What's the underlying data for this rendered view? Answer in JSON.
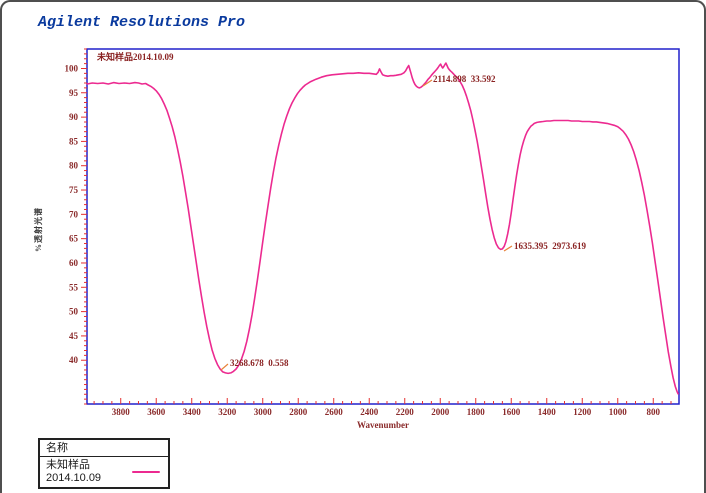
{
  "app": {
    "title": "Agilent Resolutions Pro"
  },
  "chart": {
    "xlabel": "Wavenumber",
    "ylabel": "%透射光谱",
    "annotations": {
      "sample_label": "未知样品2014.10.09",
      "peak_2114": "2114.898  33.592",
      "peak_1635": "1635.395  2973.619",
      "peak_3268": "3268.678  0.558"
    }
  },
  "legend": {
    "header": "名称",
    "entry": "未知样品2014.10.09"
  },
  "colors": {
    "curve": "#ec2a90",
    "frame": "#2121cc",
    "tick": "#e53030",
    "tick_label": "#8a2a2a",
    "leader": "#e8833a",
    "title": "#0a3a9e"
  },
  "chart_data": {
    "type": "line",
    "title": "",
    "xlabel": "Wavenumber",
    "ylabel": "%透射光谱",
    "xlim": [
      3990,
      655
    ],
    "ylim": [
      31,
      104
    ],
    "x_axis_reversed": true,
    "grid": false,
    "legend_position": "bottom-left-outside",
    "x_major_ticks": [
      3800,
      3600,
      3400,
      3200,
      3000,
      2800,
      2600,
      2400,
      2200,
      2000,
      1800,
      1600,
      1400,
      1200,
      1000,
      800
    ],
    "x_minor_step": 50,
    "y_major_ticks": [
      100,
      95,
      90,
      85,
      80,
      75,
      70,
      65,
      60,
      55,
      50,
      45,
      40
    ],
    "y_minor_step": 1,
    "series": [
      {
        "name": "未知样品2014.10.09",
        "color": "#ec2a90",
        "points": [
          [
            3990,
            96.8
          ],
          [
            3960,
            97.0
          ],
          [
            3930,
            96.9
          ],
          [
            3900,
            97.0
          ],
          [
            3870,
            96.8
          ],
          [
            3840,
            97.1
          ],
          [
            3810,
            96.9
          ],
          [
            3780,
            97.0
          ],
          [
            3750,
            96.9
          ],
          [
            3720,
            97.1
          ],
          [
            3700,
            97.0
          ],
          [
            3680,
            96.8
          ],
          [
            3660,
            96.9
          ],
          [
            3645,
            96.6
          ],
          [
            3630,
            96.3
          ],
          [
            3615,
            95.9
          ],
          [
            3600,
            95.4
          ],
          [
            3585,
            94.7
          ],
          [
            3570,
            93.8
          ],
          [
            3555,
            92.7
          ],
          [
            3540,
            91.4
          ],
          [
            3525,
            89.8
          ],
          [
            3510,
            88.0
          ],
          [
            3495,
            85.9
          ],
          [
            3480,
            83.5
          ],
          [
            3465,
            80.8
          ],
          [
            3450,
            77.8
          ],
          [
            3435,
            74.6
          ],
          [
            3420,
            71.2
          ],
          [
            3405,
            67.6
          ],
          [
            3390,
            63.9
          ],
          [
            3375,
            60.2
          ],
          [
            3360,
            56.6
          ],
          [
            3345,
            53.1
          ],
          [
            3330,
            49.8
          ],
          [
            3315,
            46.9
          ],
          [
            3300,
            44.3
          ],
          [
            3285,
            42.1
          ],
          [
            3270,
            40.4
          ],
          [
            3255,
            39.1
          ],
          [
            3240,
            38.2
          ],
          [
            3225,
            37.6
          ],
          [
            3210,
            37.4
          ],
          [
            3195,
            37.3
          ],
          [
            3180,
            37.4
          ],
          [
            3165,
            37.7
          ],
          [
            3150,
            38.2
          ],
          [
            3135,
            39.0
          ],
          [
            3120,
            40.2
          ],
          [
            3105,
            41.8
          ],
          [
            3090,
            43.9
          ],
          [
            3075,
            46.4
          ],
          [
            3060,
            49.4
          ],
          [
            3045,
            52.8
          ],
          [
            3030,
            56.5
          ],
          [
            3015,
            60.4
          ],
          [
            3000,
            64.3
          ],
          [
            2985,
            68.2
          ],
          [
            2970,
            71.9
          ],
          [
            2955,
            75.4
          ],
          [
            2940,
            78.7
          ],
          [
            2925,
            81.6
          ],
          [
            2910,
            84.2
          ],
          [
            2895,
            86.5
          ],
          [
            2880,
            88.5
          ],
          [
            2865,
            90.2
          ],
          [
            2850,
            91.7
          ],
          [
            2835,
            92.9
          ],
          [
            2820,
            93.9
          ],
          [
            2805,
            94.8
          ],
          [
            2790,
            95.5
          ],
          [
            2775,
            96.1
          ],
          [
            2760,
            96.6
          ],
          [
            2730,
            97.3
          ],
          [
            2700,
            97.8
          ],
          [
            2670,
            98.2
          ],
          [
            2640,
            98.5
          ],
          [
            2610,
            98.7
          ],
          [
            2580,
            98.8
          ],
          [
            2550,
            98.9
          ],
          [
            2520,
            99.0
          ],
          [
            2490,
            99.0
          ],
          [
            2460,
            99.1
          ],
          [
            2430,
            99.0
          ],
          [
            2400,
            99.0
          ],
          [
            2380,
            98.9
          ],
          [
            2360,
            98.8
          ],
          [
            2350,
            99.2
          ],
          [
            2342,
            99.9
          ],
          [
            2334,
            99.3
          ],
          [
            2325,
            98.7
          ],
          [
            2310,
            98.5
          ],
          [
            2295,
            98.4
          ],
          [
            2280,
            98.5
          ],
          [
            2265,
            98.5
          ],
          [
            2250,
            98.6
          ],
          [
            2235,
            98.7
          ],
          [
            2220,
            98.8
          ],
          [
            2205,
            99.1
          ],
          [
            2195,
            99.5
          ],
          [
            2185,
            100.2
          ],
          [
            2178,
            100.6
          ],
          [
            2172,
            99.9
          ],
          [
            2165,
            99.0
          ],
          [
            2158,
            98.1
          ],
          [
            2150,
            97.3
          ],
          [
            2142,
            96.7
          ],
          [
            2134,
            96.3
          ],
          [
            2126,
            96.1
          ],
          [
            2118,
            96.0
          ],
          [
            2110,
            96.1
          ],
          [
            2100,
            96.4
          ],
          [
            2090,
            96.8
          ],
          [
            2080,
            97.2
          ],
          [
            2070,
            97.7
          ],
          [
            2060,
            98.1
          ],
          [
            2050,
            98.6
          ],
          [
            2040,
            99.0
          ],
          [
            2030,
            99.4
          ],
          [
            2020,
            99.8
          ],
          [
            2012,
            100.2
          ],
          [
            2005,
            100.6
          ],
          [
            1998,
            100.9
          ],
          [
            1992,
            100.4
          ],
          [
            1986,
            100.1
          ],
          [
            1980,
            100.4
          ],
          [
            1974,
            100.8
          ],
          [
            1968,
            101.1
          ],
          [
            1962,
            100.6
          ],
          [
            1956,
            100.1
          ],
          [
            1950,
            99.8
          ],
          [
            1942,
            99.5
          ],
          [
            1934,
            99.2
          ],
          [
            1926,
            98.9
          ],
          [
            1918,
            98.6
          ],
          [
            1910,
            98.3
          ],
          [
            1900,
            97.9
          ],
          [
            1888,
            97.3
          ],
          [
            1876,
            96.5
          ],
          [
            1864,
            95.5
          ],
          [
            1852,
            94.3
          ],
          [
            1840,
            92.9
          ],
          [
            1828,
            91.3
          ],
          [
            1816,
            89.4
          ],
          [
            1804,
            87.3
          ],
          [
            1792,
            85.0
          ],
          [
            1780,
            82.5
          ],
          [
            1768,
            79.8
          ],
          [
            1756,
            77.0
          ],
          [
            1744,
            74.2
          ],
          [
            1732,
            71.5
          ],
          [
            1720,
            69.0
          ],
          [
            1708,
            66.9
          ],
          [
            1696,
            65.2
          ],
          [
            1684,
            63.9
          ],
          [
            1672,
            63.1
          ],
          [
            1660,
            62.8
          ],
          [
            1650,
            62.9
          ],
          [
            1640,
            63.4
          ],
          [
            1630,
            64.4
          ],
          [
            1620,
            66.0
          ],
          [
            1610,
            68.0
          ],
          [
            1600,
            70.4
          ],
          [
            1590,
            73.0
          ],
          [
            1580,
            75.6
          ],
          [
            1570,
            78.1
          ],
          [
            1560,
            80.3
          ],
          [
            1550,
            82.2
          ],
          [
            1540,
            83.8
          ],
          [
            1530,
            85.1
          ],
          [
            1520,
            86.2
          ],
          [
            1510,
            87.0
          ],
          [
            1500,
            87.6
          ],
          [
            1490,
            88.1
          ],
          [
            1480,
            88.4
          ],
          [
            1470,
            88.7
          ],
          [
            1455,
            88.9
          ],
          [
            1440,
            89.0
          ],
          [
            1420,
            89.1
          ],
          [
            1400,
            89.2
          ],
          [
            1380,
            89.2
          ],
          [
            1360,
            89.3
          ],
          [
            1340,
            89.3
          ],
          [
            1320,
            89.3
          ],
          [
            1300,
            89.3
          ],
          [
            1280,
            89.3
          ],
          [
            1260,
            89.2
          ],
          [
            1240,
            89.2
          ],
          [
            1220,
            89.2
          ],
          [
            1200,
            89.1
          ],
          [
            1180,
            89.1
          ],
          [
            1160,
            89.1
          ],
          [
            1140,
            89.0
          ],
          [
            1120,
            89.0
          ],
          [
            1100,
            88.9
          ],
          [
            1080,
            88.8
          ],
          [
            1060,
            88.7
          ],
          [
            1040,
            88.5
          ],
          [
            1020,
            88.3
          ],
          [
            1000,
            88.0
          ],
          [
            985,
            87.6
          ],
          [
            970,
            87.1
          ],
          [
            955,
            86.4
          ],
          [
            940,
            85.5
          ],
          [
            925,
            84.3
          ],
          [
            910,
            82.9
          ],
          [
            895,
            81.1
          ],
          [
            880,
            79.0
          ],
          [
            865,
            76.6
          ],
          [
            850,
            73.9
          ],
          [
            835,
            70.9
          ],
          [
            820,
            67.6
          ],
          [
            805,
            64.1
          ],
          [
            790,
            60.4
          ],
          [
            775,
            56.6
          ],
          [
            760,
            52.7
          ],
          [
            745,
            48.9
          ],
          [
            730,
            45.2
          ],
          [
            715,
            41.7
          ],
          [
            700,
            38.6
          ],
          [
            688,
            36.4
          ],
          [
            676,
            34.6
          ],
          [
            666,
            33.6
          ],
          [
            660,
            33.1
          ]
        ]
      }
    ],
    "peak_annotations": [
      {
        "text": "3268.678  0.558",
        "at_wavenumber": 3268.678
      },
      {
        "text": "2114.898  33.592",
        "at_wavenumber": 2114.898
      },
      {
        "text": "1635.395  2973.619",
        "at_wavenumber": 1635.395
      }
    ]
  }
}
